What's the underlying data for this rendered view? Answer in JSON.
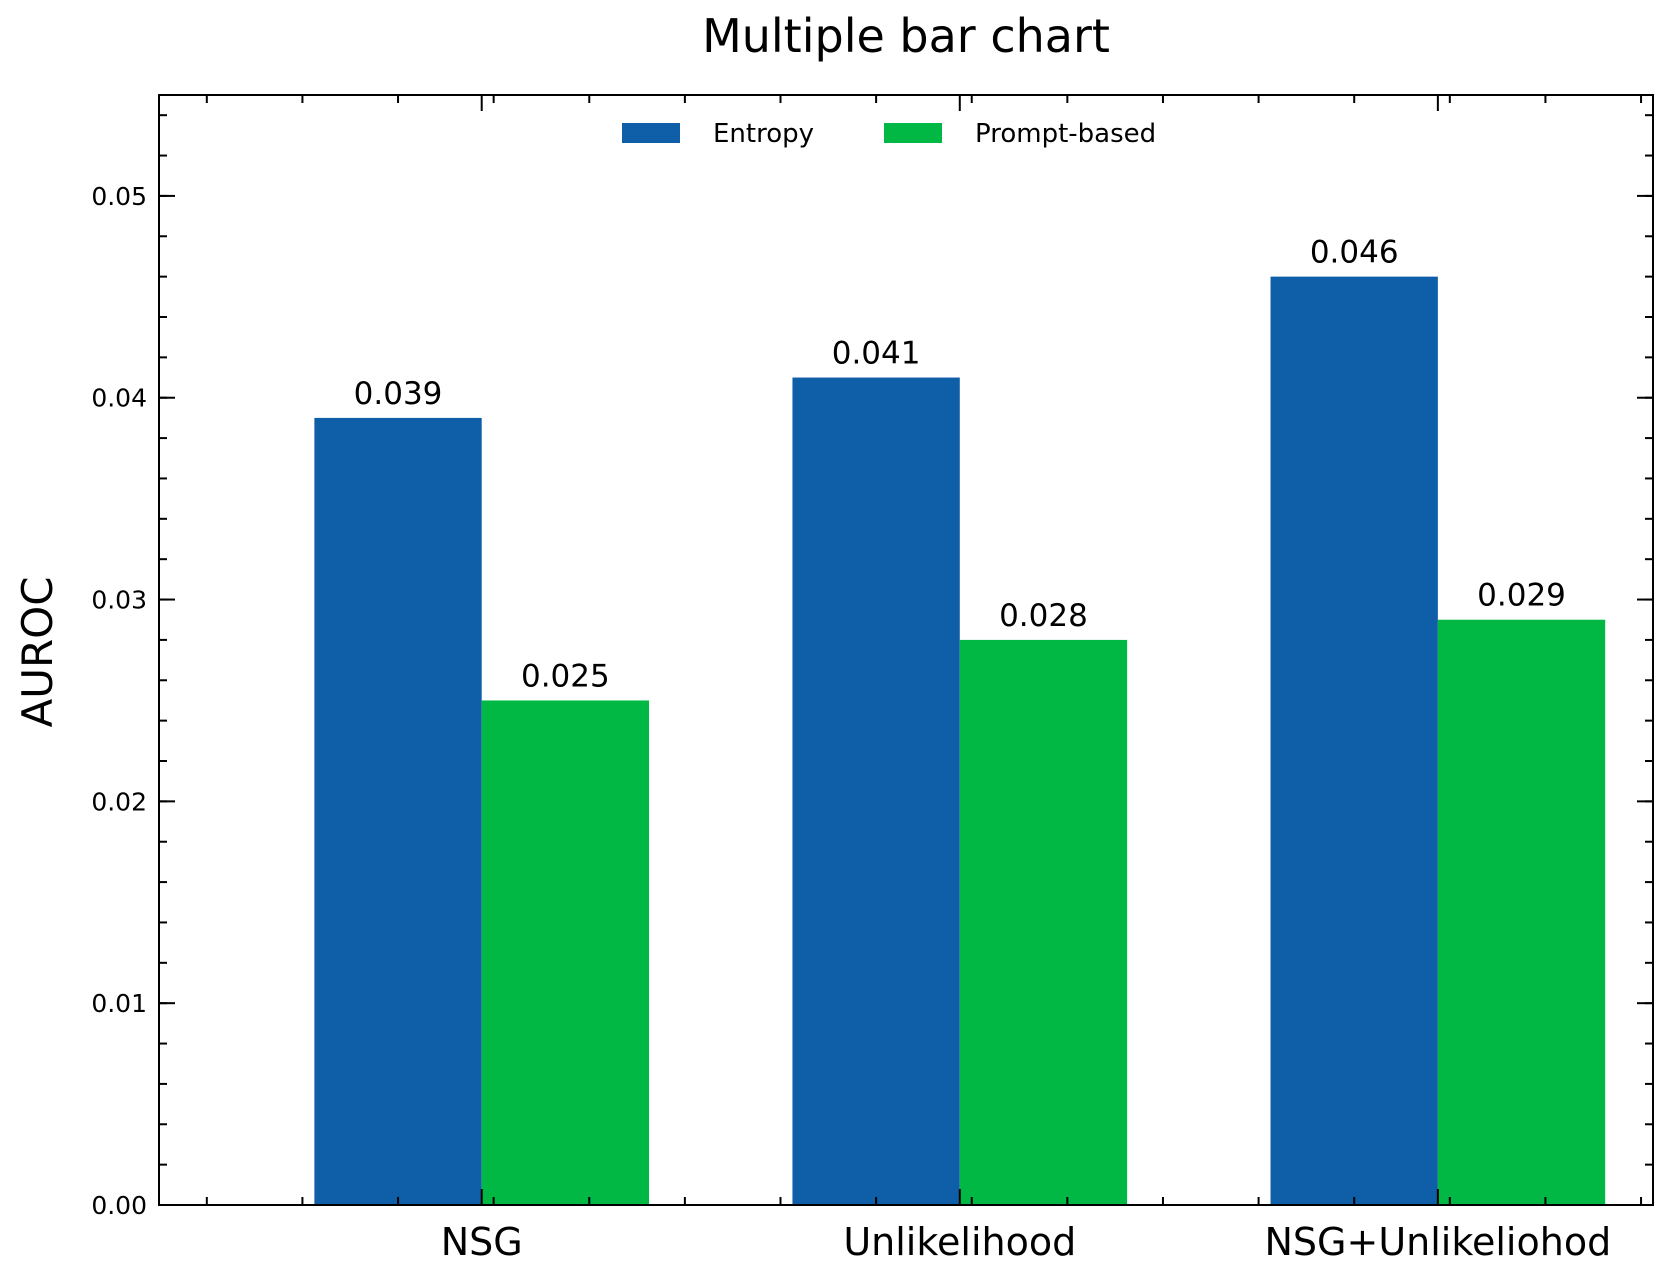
{
  "chart_data": {
    "type": "bar",
    "title": "Multiple bar chart",
    "xlabel": "",
    "ylabel": "AUROC",
    "categories": [
      "NSG",
      "Unlikelihood",
      "NSG+Unlikeliohod"
    ],
    "series": [
      {
        "name": "Entropy",
        "values": [
          0.039,
          0.041,
          0.046
        ],
        "color": "#0f5ea8"
      },
      {
        "name": "Prompt-based",
        "values": [
          0.025,
          0.028,
          0.029
        ],
        "color": "#00b843"
      }
    ],
    "bar_labels": [
      [
        "0.039",
        "0.041",
        "0.046"
      ],
      [
        "0.025",
        "0.028",
        "0.029"
      ]
    ],
    "ylim": [
      0,
      0.055
    ],
    "yticks": [
      0.0,
      0.01,
      0.02,
      0.03,
      0.04,
      0.05
    ],
    "ytick_labels": [
      "0.00",
      "0.01",
      "0.02",
      "0.03",
      "0.04",
      "0.05"
    ],
    "grid": false,
    "legend_position": "top-center"
  }
}
